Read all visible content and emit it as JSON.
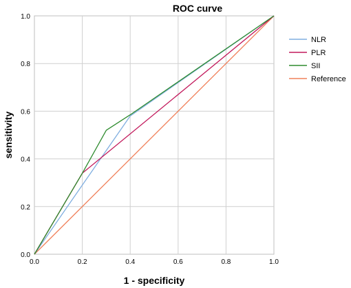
{
  "chart_data": {
    "type": "line",
    "title": "ROC curve",
    "xlabel": "1 - specificity",
    "ylabel": "sensitivity",
    "xlim": [
      0.0,
      1.0
    ],
    "ylim": [
      0.0,
      1.0
    ],
    "xticks": [
      "0.0",
      "0.2",
      "0.4",
      "0.6",
      "0.8",
      "1.0"
    ],
    "yticks": [
      "0.0",
      "0.2",
      "0.4",
      "0.6",
      "0.8",
      "1.0"
    ],
    "grid": true,
    "legend_position": "right",
    "series": [
      {
        "name": "NLR",
        "color": "#7faee0",
        "x": [
          0.0,
          0.4,
          1.0
        ],
        "y": [
          0.0,
          0.58,
          1.0
        ]
      },
      {
        "name": "PLR",
        "color": "#c2185b",
        "x": [
          0.0,
          0.2,
          1.0
        ],
        "y": [
          0.0,
          0.34,
          1.0
        ]
      },
      {
        "name": "SII",
        "color": "#2e8b2e",
        "x": [
          0.0,
          0.2,
          0.3,
          0.4,
          1.0
        ],
        "y": [
          0.0,
          0.34,
          0.52,
          0.585,
          1.0
        ]
      },
      {
        "name": "Reference",
        "color": "#f0805a",
        "x": [
          0.0,
          1.0
        ],
        "y": [
          0.0,
          1.0
        ]
      }
    ]
  }
}
